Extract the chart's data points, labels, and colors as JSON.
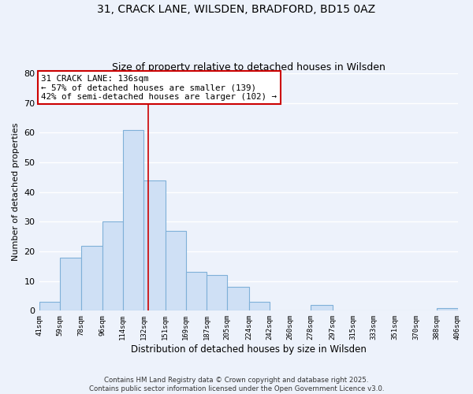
{
  "title1": "31, CRACK LANE, WILSDEN, BRADFORD, BD15 0AZ",
  "title2": "Size of property relative to detached houses in Wilsden",
  "xlabel": "Distribution of detached houses by size in Wilsden",
  "ylabel": "Number of detached properties",
  "bar_color": "#cfe0f5",
  "bar_edge_color": "#7fb0d8",
  "background_color": "#edf2fb",
  "grid_color": "#ffffff",
  "bins": [
    41,
    59,
    78,
    96,
    114,
    132,
    151,
    169,
    187,
    205,
    224,
    242,
    260,
    278,
    297,
    315,
    333,
    351,
    370,
    388,
    406
  ],
  "counts": [
    3,
    18,
    22,
    30,
    61,
    44,
    27,
    13,
    12,
    8,
    3,
    0,
    0,
    2,
    0,
    0,
    0,
    0,
    0,
    1
  ],
  "tick_labels": [
    "41sqm",
    "59sqm",
    "78sqm",
    "96sqm",
    "114sqm",
    "132sqm",
    "151sqm",
    "169sqm",
    "187sqm",
    "205sqm",
    "224sqm",
    "242sqm",
    "260sqm",
    "278sqm",
    "297sqm",
    "315sqm",
    "333sqm",
    "351sqm",
    "370sqm",
    "388sqm",
    "406sqm"
  ],
  "property_value": 136,
  "annotation_title": "31 CRACK LANE: 136sqm",
  "annotation_line1": "← 57% of detached houses are smaller (139)",
  "annotation_line2": "42% of semi-detached houses are larger (102) →",
  "vline_color": "#cc0000",
  "annotation_box_edge_color": "#cc0000",
  "annotation_box_color": "#ffffff",
  "ylim": [
    0,
    80
  ],
  "yticks": [
    0,
    10,
    20,
    30,
    40,
    50,
    60,
    70,
    80
  ],
  "footer1": "Contains HM Land Registry data © Crown copyright and database right 2025.",
  "footer2": "Contains public sector information licensed under the Open Government Licence v3.0."
}
